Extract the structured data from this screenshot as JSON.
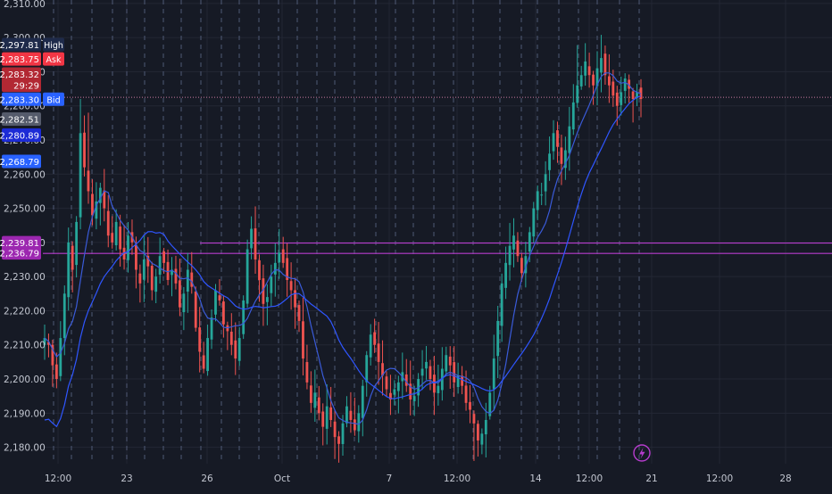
{
  "colors": {
    "background": "#161a25",
    "grid": "#232734",
    "session_line": "#5a6584",
    "up": "#26a69a",
    "down": "#ef5350",
    "ma_fast": "#3a5bd9",
    "ma_slow": "#2f56ff",
    "level_line": "#b63ccd",
    "price_dotted": "#c97aa0",
    "axis_text": "#c3c7d1"
  },
  "price_axis": {
    "ticks": [
      "2,310.00",
      "2,300.00",
      "2,290.00",
      "2,280.00",
      "2,270.00",
      "2,260.00",
      "2,250.00",
      "2,240.00",
      "2,230.00",
      "2,220.00",
      "2,210.00",
      "2,200.00",
      "2,190.00",
      "2,180.00"
    ],
    "tick_values": [
      2310,
      2300,
      2290,
      2280,
      2270,
      2260,
      2250,
      2240,
      2230,
      2220,
      2210,
      2200,
      2190,
      2180
    ]
  },
  "time_axis": {
    "labels": [
      "12:00",
      "23",
      "26",
      "Oct",
      "7",
      "12:00",
      "14",
      "12:00",
      "21",
      "12:00",
      "28"
    ]
  },
  "price_tags": [
    {
      "value": "2,297.81",
      "label": "High",
      "price": 2297.81,
      "color": "#1e2a4a",
      "label_color": "#1e2a4a"
    },
    {
      "value": "2,283.75",
      "label": "Ask",
      "price": 2293.6,
      "color": "#f23645",
      "label_color": "#f23645"
    },
    {
      "value": "2,283.32",
      "label": "",
      "price": 2289.2,
      "color": "#b22833",
      "label_color": ""
    },
    {
      "value": "29:29",
      "label": "",
      "price": 2285.9,
      "color": "#b22833",
      "label_color": ""
    },
    {
      "value": "2,283.30",
      "label": "Bid",
      "price": 2281.8,
      "color": "#2962ff",
      "label_color": "#2962ff"
    },
    {
      "value": "2,282.51",
      "label": "",
      "price": 2276.0,
      "color": "#555b6b",
      "label_color": ""
    },
    {
      "value": "2,280.89",
      "label": "",
      "price": 2271.3,
      "color": "#1c2bd6",
      "label_color": ""
    },
    {
      "value": "2,268.79",
      "label": "",
      "price": 2263.6,
      "color": "#2962ff",
      "label_color": ""
    },
    {
      "value": "2,239.81",
      "label": "",
      "price": 2239.81,
      "color": "#9c27b0",
      "label_color": ""
    },
    {
      "value": "2,236.79",
      "label": "",
      "price": 2236.79,
      "color": "#9c27b0",
      "label_color": ""
    }
  ],
  "chart_data": {
    "type": "candlestick",
    "title": "",
    "y_range": [
      2175.2,
      2311.0
    ],
    "horizontal_levels": [
      2239.81,
      2236.79
    ],
    "current_price": 2282.51,
    "x_labels": [
      "12:00",
      "23",
      "26",
      "Oct",
      "7",
      "12:00",
      "14",
      "12:00",
      "21",
      "12:00",
      "28"
    ],
    "close": [
      2212,
      2210,
      2204,
      2200,
      2212,
      2225,
      2240,
      2232,
      2246,
      2272,
      2262,
      2255,
      2248,
      2252,
      2256,
      2250,
      2242,
      2240,
      2246,
      2238,
      2235,
      2242,
      2240,
      2232,
      2228,
      2235,
      2233,
      2226,
      2230,
      2236,
      2234,
      2229,
      2232,
      2228,
      2221,
      2225,
      2232,
      2227,
      2215,
      2208,
      2203,
      2212,
      2218,
      2226,
      2223,
      2216,
      2214,
      2210,
      2206,
      2212,
      2223,
      2238,
      2244,
      2235,
      2229,
      2222,
      2224,
      2230,
      2234,
      2237,
      2234,
      2229,
      2226,
      2221,
      2217,
      2206,
      2199,
      2193,
      2196,
      2190,
      2186,
      2192,
      2188,
      2183,
      2181,
      2187,
      2192,
      2188,
      2185,
      2190,
      2198,
      2207,
      2213,
      2210,
      2205,
      2201,
      2197,
      2194,
      2197,
      2199,
      2202,
      2198,
      2194,
      2195,
      2200,
      2203,
      2205,
      2200,
      2196,
      2198,
      2203,
      2207,
      2204,
      2199,
      2201,
      2198,
      2193,
      2191,
      2187,
      2182,
      2184,
      2188,
      2196,
      2206,
      2217,
      2228,
      2234,
      2239,
      2242,
      2236,
      2231,
      2236,
      2243,
      2250,
      2255,
      2254,
      2260,
      2266,
      2272,
      2268,
      2263,
      2267,
      2274,
      2281,
      2286,
      2289,
      2293,
      2289,
      2286,
      2291,
      2294,
      2289,
      2286,
      2283,
      2280,
      2284,
      2288,
      2285,
      2282,
      2284,
      2282
    ]
  }
}
